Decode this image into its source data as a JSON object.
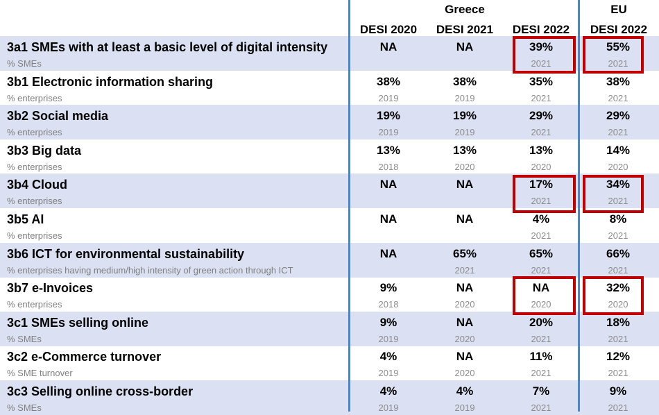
{
  "header": {
    "greece_label": "Greece",
    "eu_label": "EU",
    "columns": [
      "DESI 2020",
      "DESI 2021",
      "DESI 2022",
      "DESI 2022"
    ]
  },
  "rows": [
    {
      "title": "3a1 SMEs with at least a basic level of digital intensity",
      "unit": "% SMEs",
      "cells": [
        {
          "v": "NA",
          "y": ""
        },
        {
          "v": "NA",
          "y": ""
        },
        {
          "v": "39%",
          "y": "2021"
        },
        {
          "v": "55%",
          "y": "2021"
        }
      ]
    },
    {
      "title": "3b1 Electronic information sharing",
      "unit": "% enterprises",
      "cells": [
        {
          "v": "38%",
          "y": "2019"
        },
        {
          "v": "38%",
          "y": "2019"
        },
        {
          "v": "35%",
          "y": "2021"
        },
        {
          "v": "38%",
          "y": "2021"
        }
      ]
    },
    {
      "title": "3b2 Social media",
      "unit": "% enterprises",
      "cells": [
        {
          "v": "19%",
          "y": "2019"
        },
        {
          "v": "19%",
          "y": "2019"
        },
        {
          "v": "29%",
          "y": "2021"
        },
        {
          "v": "29%",
          "y": "2021"
        }
      ]
    },
    {
      "title": "3b3 Big data",
      "unit": "% enterprises",
      "cells": [
        {
          "v": "13%",
          "y": "2018"
        },
        {
          "v": "13%",
          "y": "2020"
        },
        {
          "v": "13%",
          "y": "2020"
        },
        {
          "v": "14%",
          "y": "2020"
        }
      ]
    },
    {
      "title": "3b4 Cloud",
      "unit": "% enterprises",
      "cells": [
        {
          "v": "NA",
          "y": ""
        },
        {
          "v": "NA",
          "y": ""
        },
        {
          "v": "17%",
          "y": "2021"
        },
        {
          "v": "34%",
          "y": "2021"
        }
      ]
    },
    {
      "title": "3b5 AI",
      "unit": "% enterprises",
      "cells": [
        {
          "v": "NA",
          "y": ""
        },
        {
          "v": "NA",
          "y": ""
        },
        {
          "v": "4%",
          "y": "2021"
        },
        {
          "v": "8%",
          "y": "2021"
        }
      ]
    },
    {
      "title": "3b6 ICT for environmental sustainability",
      "unit": "% enterprises having medium/high intensity of green action through ICT",
      "cells": [
        {
          "v": "NA",
          "y": ""
        },
        {
          "v": "65%",
          "y": "2021"
        },
        {
          "v": "65%",
          "y": "2021"
        },
        {
          "v": "66%",
          "y": "2021"
        }
      ]
    },
    {
      "title": "3b7 e-Invoices",
      "unit": "% enterprises",
      "cells": [
        {
          "v": "9%",
          "y": "2018"
        },
        {
          "v": "NA",
          "y": "2020"
        },
        {
          "v": "NA",
          "y": "2020"
        },
        {
          "v": "32%",
          "y": "2020"
        }
      ]
    },
    {
      "title": "3c1 SMEs selling online",
      "unit": "% SMEs",
      "cells": [
        {
          "v": "9%",
          "y": "2019"
        },
        {
          "v": "NA",
          "y": "2020"
        },
        {
          "v": "20%",
          "y": "2021"
        },
        {
          "v": "18%",
          "y": "2021"
        }
      ]
    },
    {
      "title": "3c2 e-Commerce turnover",
      "unit": "% SME turnover",
      "cells": [
        {
          "v": "4%",
          "y": "2019"
        },
        {
          "v": "NA",
          "y": "2020"
        },
        {
          "v": "11%",
          "y": "2021"
        },
        {
          "v": "12%",
          "y": "2021"
        }
      ]
    },
    {
      "title": "3c3 Selling online cross-border",
      "unit": "% SMEs",
      "cells": [
        {
          "v": "4%",
          "y": "2019"
        },
        {
          "v": "4%",
          "y": "2019"
        },
        {
          "v": "7%",
          "y": "2021"
        },
        {
          "v": "9%",
          "y": "2021"
        }
      ]
    }
  ],
  "colors": {
    "shade": "#dbe0f2",
    "divider": "#4a86c8",
    "highlight": "#c00000"
  }
}
